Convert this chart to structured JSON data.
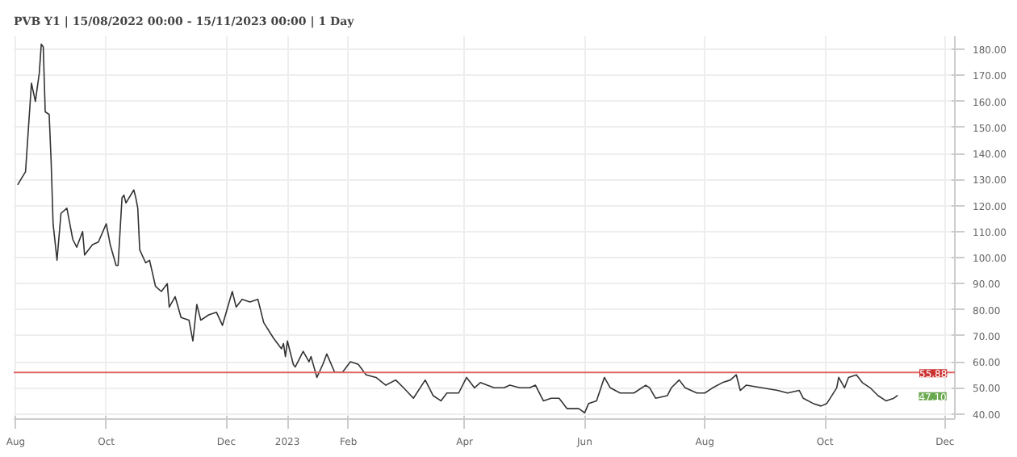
{
  "chart_data": {
    "type": "line",
    "title": "PVB Y1 | 15/08/2022 00:00 - 15/11/2023 00:00 | 1 Day",
    "x": [
      "2022-08-17",
      "2022-08-21",
      "2022-08-24",
      "2022-08-26",
      "2022-08-28",
      "2022-08-29",
      "2022-08-30",
      "2022-08-31",
      "2022-09-02",
      "2022-09-03",
      "2022-09-04",
      "2022-09-06",
      "2022-09-08",
      "2022-09-11",
      "2022-09-14",
      "2022-09-16",
      "2022-09-19",
      "2022-09-20",
      "2022-09-24",
      "2022-09-27",
      "2022-10-01",
      "2022-10-03",
      "2022-10-06",
      "2022-10-07",
      "2022-10-09",
      "2022-10-10",
      "2022-10-11",
      "2022-10-15",
      "2022-10-16",
      "2022-10-17",
      "2022-10-18",
      "2022-10-21",
      "2022-10-23",
      "2022-10-26",
      "2022-10-29",
      "2022-11-01",
      "2022-11-02",
      "2022-11-05",
      "2022-11-08",
      "2022-11-12",
      "2022-11-14",
      "2022-11-16",
      "2022-11-18",
      "2022-11-22",
      "2022-11-26",
      "2022-11-29",
      "2022-12-04",
      "2022-12-06",
      "2022-12-09",
      "2022-12-13",
      "2022-12-17",
      "2022-12-20",
      "2022-12-25",
      "2022-12-29",
      "2022-12-30",
      "2022-12-31",
      "2023-01-01",
      "2023-01-04",
      "2023-01-05",
      "2023-01-07",
      "2023-01-09",
      "2023-01-12",
      "2023-01-13",
      "2023-01-16",
      "2023-01-19",
      "2023-01-21",
      "2023-01-25",
      "2023-01-29",
      "2023-02-02",
      "2023-02-06",
      "2023-02-10",
      "2023-02-15",
      "2023-02-20",
      "2023-02-25",
      "2023-03-01",
      "2023-03-06",
      "2023-03-12",
      "2023-03-16",
      "2023-03-20",
      "2023-03-23",
      "2023-03-29",
      "2023-04-02",
      "2023-04-06",
      "2023-04-09",
      "2023-04-16",
      "2023-04-21",
      "2023-04-24",
      "2023-04-29",
      "2023-05-04",
      "2023-05-07",
      "2023-05-11",
      "2023-05-15",
      "2023-05-19",
      "2023-05-23",
      "2023-05-29",
      "2023-06-01",
      "2023-06-03",
      "2023-06-07",
      "2023-06-11",
      "2023-06-14",
      "2023-06-19",
      "2023-06-26",
      "2023-07-02",
      "2023-07-04",
      "2023-07-07",
      "2023-07-13",
      "2023-07-15",
      "2023-07-19",
      "2023-07-22",
      "2023-07-28",
      "2023-08-01",
      "2023-08-05",
      "2023-08-10",
      "2023-08-14",
      "2023-08-17",
      "2023-08-19",
      "2023-08-22",
      "2023-08-30",
      "2023-09-07",
      "2023-09-12",
      "2023-09-18",
      "2023-09-20",
      "2023-09-25",
      "2023-09-29",
      "2023-10-02",
      "2023-10-07",
      "2023-10-08",
      "2023-10-11",
      "2023-10-13",
      "2023-10-17",
      "2023-10-20",
      "2023-10-24",
      "2023-10-28",
      "2023-11-01",
      "2023-11-05",
      "2023-11-07"
    ],
    "series": [
      {
        "color": "#333333",
        "values": [
          128,
          133,
          167,
          160,
          171,
          182,
          181,
          156,
          155,
          137,
          113,
          99,
          117,
          119,
          107,
          104,
          110,
          101,
          105,
          106,
          113,
          105,
          97,
          97,
          123,
          124,
          121,
          126,
          123,
          119,
          103,
          98,
          99,
          89,
          87,
          90,
          81,
          85,
          77,
          76,
          68,
          82,
          76,
          78,
          79,
          74,
          87,
          81,
          84,
          83,
          84,
          75,
          69,
          65,
          67,
          62,
          68,
          59,
          58,
          61,
          64,
          60,
          62,
          54,
          59,
          63,
          56,
          56,
          60,
          59,
          55,
          54,
          51,
          53,
          50,
          46,
          53,
          47,
          45,
          48,
          48,
          54,
          50,
          52,
          50,
          50,
          51,
          50,
          50,
          51,
          45,
          46,
          46,
          42,
          42,
          40.4,
          44,
          45,
          54,
          50,
          48,
          48,
          51,
          50,
          46,
          47,
          50,
          53,
          50,
          48,
          48,
          50,
          52,
          53,
          55,
          49,
          51,
          50,
          49,
          48,
          49,
          46,
          44,
          43,
          44,
          50,
          54,
          50,
          54,
          55,
          52,
          50,
          47,
          45,
          46,
          47.1
        ]
      }
    ],
    "xlim": [
      "2022-08-15",
      "2023-12-06"
    ],
    "xticks": [
      {
        "value": "2022-08-16",
        "label": "Aug"
      },
      {
        "value": "2022-10-01",
        "label": "Oct"
      },
      {
        "value": "2022-12-01",
        "label": "Dec"
      },
      {
        "value": "2023-01-01",
        "label": "2023"
      },
      {
        "value": "2023-02-01",
        "label": "Feb"
      },
      {
        "value": "2023-04-01",
        "label": "Apr"
      },
      {
        "value": "2023-06-01",
        "label": "Jun"
      },
      {
        "value": "2023-08-01",
        "label": "Aug"
      },
      {
        "value": "2023-10-01",
        "label": "Oct"
      },
      {
        "value": "2023-12-01",
        "label": "Dec"
      }
    ],
    "ylim": [
      38,
      185
    ],
    "yticks": [
      {
        "value": 40,
        "label": "40.00"
      },
      {
        "value": 50,
        "label": "50.00"
      },
      {
        "value": 60,
        "label": "60.00"
      },
      {
        "value": 70,
        "label": "70.00"
      },
      {
        "value": 80,
        "label": "80.00"
      },
      {
        "value": 90,
        "label": "90.00"
      },
      {
        "value": 100,
        "label": "100.00"
      },
      {
        "value": 110,
        "label": "110.00"
      },
      {
        "value": 120,
        "label": "120.00"
      },
      {
        "value": 130,
        "label": "130.00"
      },
      {
        "value": 140,
        "label": "140.00"
      },
      {
        "value": 150,
        "label": "150.00"
      },
      {
        "value": 160,
        "label": "160.00"
      },
      {
        "value": 170,
        "label": "170.00"
      },
      {
        "value": 180,
        "label": "180.00"
      }
    ],
    "ref_lines": [
      {
        "axis": "y",
        "value": 55.88,
        "label": "55.88",
        "color": "#e06666"
      }
    ],
    "annotations": [
      {
        "text": "47.10",
        "x": "2023-11-07",
        "y": 47.1
      }
    ],
    "grid": true,
    "line_style": "solid",
    "marker": "none"
  }
}
